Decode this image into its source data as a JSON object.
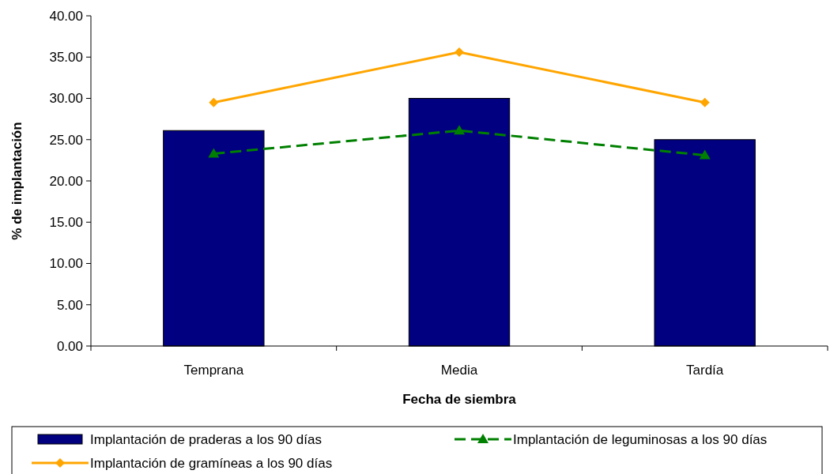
{
  "chart_data": {
    "type": "bar",
    "xlabel": "Fecha de siembra",
    "ylabel": "% de implantación",
    "categories": [
      "Temprana",
      "Media",
      "Tardía"
    ],
    "series": [
      {
        "name": "Implantación de praderas a los 90 días",
        "color": "#000080",
        "values": [
          26.1,
          30.0,
          25.0
        ]
      },
      {
        "name": "Implantación de leguminosas a los 90 días",
        "type": "line",
        "color": "#008000",
        "values": [
          23.3,
          26.1,
          23.1
        ],
        "marker": "triangle",
        "line_style": "dashed"
      },
      {
        "name": "Implantación de gramíneas a los 90 días",
        "type": "line",
        "color": "#ffa500",
        "values": [
          29.5,
          35.6,
          29.5
        ],
        "marker": "diamond",
        "line_style": "solid"
      }
    ],
    "ylim": [
      0,
      40
    ],
    "yticks": [
      {
        "value": 0,
        "label": "0.00"
      },
      {
        "value": 5,
        "label": "5.00"
      },
      {
        "value": 10,
        "label": "10.00"
      },
      {
        "value": 15,
        "label": "15.00"
      },
      {
        "value": 20,
        "label": "20.00"
      },
      {
        "value": 25,
        "label": "25.00"
      },
      {
        "value": 30,
        "label": "30.00"
      },
      {
        "value": 35,
        "label": "35.00"
      },
      {
        "value": 40,
        "label": "40.00"
      }
    ],
    "grid": false,
    "legend": "bottom"
  }
}
